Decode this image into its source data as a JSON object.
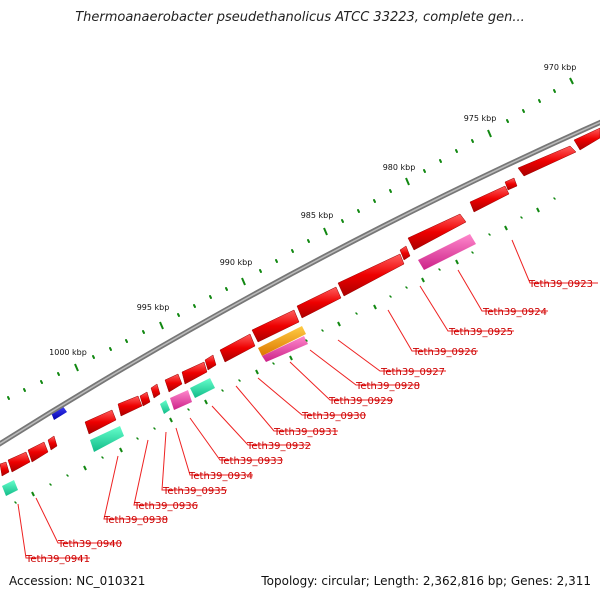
{
  "title": "Thermoanaerobacter pseudethanolicus ATCC 33223, complete gen...",
  "footer": {
    "accession": "Accession: NC_010321",
    "summary": "Topology: circular; Length: 2,362,816 bp; Genes: 2,311"
  },
  "scale_labels": [
    "970 kbp",
    "975 kbp",
    "980 kbp",
    "985 kbp",
    "990 kbp",
    "995 kbp",
    "1000 kbp"
  ],
  "gene_labels": [
    "Teth39_0923",
    "Teth39_0924",
    "Teth39_0925",
    "Teth39_0926",
    "Teth39_0927",
    "Teth39_0928",
    "Teth39_0929",
    "Teth39_0930",
    "Teth39_0931",
    "Teth39_0932",
    "Teth39_0933",
    "Teth39_0934",
    "Teth39_0935",
    "Teth39_0936",
    "Teth39_0938",
    "Teth39_0940",
    "Teth39_0941"
  ],
  "colors": {
    "cds": "#ff0000",
    "rna": "#ff44aa",
    "orange": "#ff9900",
    "teal": "#22ddaa",
    "blue": "#0000dd",
    "backbone": "#888888",
    "tick": "#118811",
    "label": "#cc0000"
  }
}
